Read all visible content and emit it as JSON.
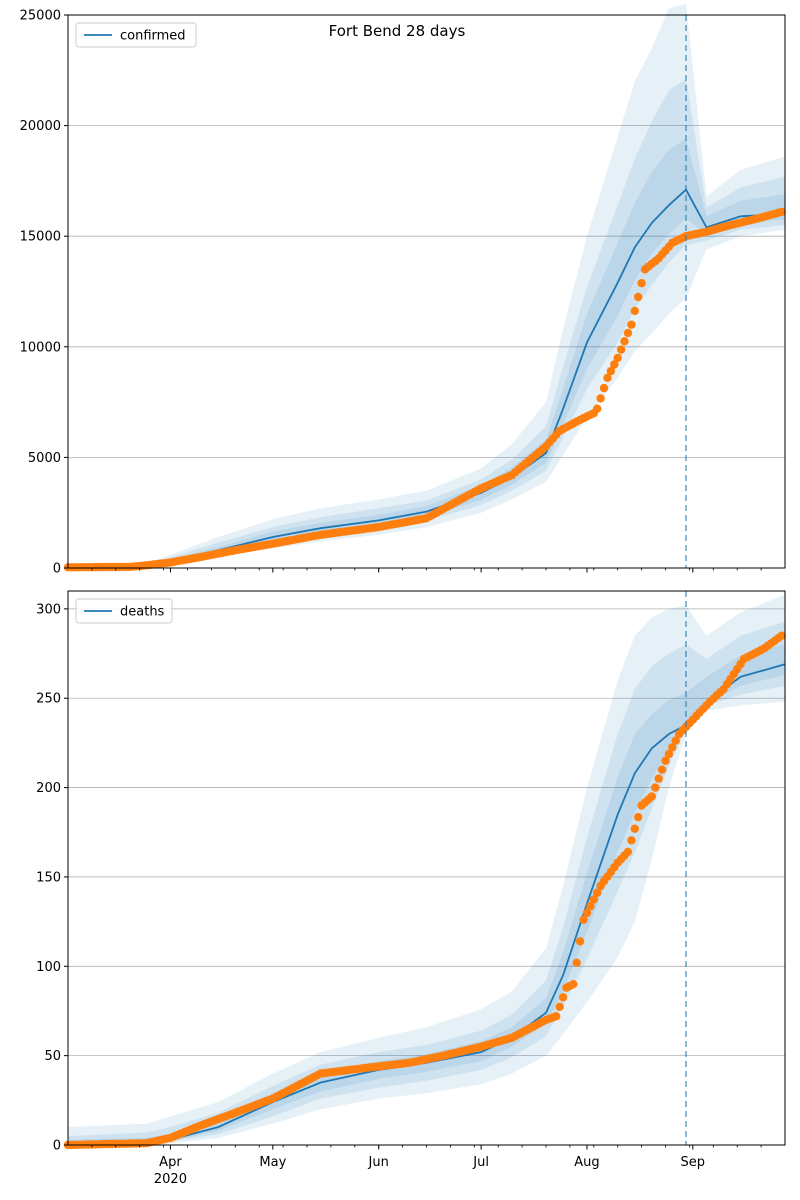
{
  "title": "Fort Bend 28 days",
  "colors": {
    "model": "#1f77b4",
    "observed": "#ff7f0e",
    "band": "#1f77b4",
    "grid": "#b0b0b0",
    "vline": "#1f77b4"
  },
  "x_axis": {
    "range": [
      "2020-03-02",
      "2020-09-28"
    ],
    "major_ticks": [
      {
        "date": "2020-04-01",
        "label": "Apr",
        "sublabel": "2020"
      },
      {
        "date": "2020-05-01",
        "label": "May",
        "sublabel": ""
      },
      {
        "date": "2020-06-01",
        "label": "Jun",
        "sublabel": ""
      },
      {
        "date": "2020-07-01",
        "label": "Jul",
        "sublabel": ""
      },
      {
        "date": "2020-08-01",
        "label": "Aug",
        "sublabel": ""
      },
      {
        "date": "2020-09-01",
        "label": "Sep",
        "sublabel": ""
      }
    ],
    "vline_date": "2020-08-30"
  },
  "chart_data": [
    {
      "type": "line",
      "legend": "confirmed",
      "legend_position": "top-left",
      "ylim": [
        0,
        25000
      ],
      "yticks": [
        "0",
        "5000",
        "10000",
        "15000",
        "20000",
        "25000"
      ],
      "ytick_values": [
        0,
        5000,
        10000,
        15000,
        20000,
        25000
      ],
      "grid": "horizontal",
      "model": {
        "x": [
          "2020-03-02",
          "2020-03-25",
          "2020-04-01",
          "2020-04-15",
          "2020-05-01",
          "2020-05-15",
          "2020-06-01",
          "2020-06-15",
          "2020-07-01",
          "2020-07-10",
          "2020-07-20",
          "2020-07-25",
          "2020-08-01",
          "2020-08-10",
          "2020-08-15",
          "2020-08-20",
          "2020-08-25",
          "2020-08-30",
          "2020-09-05",
          "2020-09-15",
          "2020-09-28"
        ],
        "median": [
          0,
          100,
          300,
          800,
          1400,
          1800,
          2150,
          2550,
          3400,
          4100,
          5200,
          7200,
          10200,
          12900,
          14500,
          15600,
          16400,
          17100,
          15400,
          15900,
          16000
        ],
        "bands": [
          {
            "lo": [
              0,
              40,
              180,
              500,
              900,
              1200,
              1500,
              1850,
              2500,
              3100,
              3900,
              5100,
              6800,
              8600,
              9800,
              10600,
              11500,
              12200,
              14400,
              15000,
              15300
            ],
            "hi": [
              30,
              200,
              600,
              1400,
              2200,
              2700,
              3100,
              3500,
              4500,
              5600,
              7500,
              10800,
              15000,
              19500,
              22000,
              23500,
              25300,
              25500,
              16800,
              18000,
              18600
            ]
          },
          {
            "lo": [
              0,
              60,
              230,
              620,
              1100,
              1450,
              1800,
              2150,
              2850,
              3500,
              4400,
              5900,
              8100,
              10200,
              11700,
              12800,
              13800,
              14600,
              14800,
              15300,
              15500
            ],
            "hi": [
              15,
              160,
              480,
              1150,
              1850,
              2300,
              2700,
              3050,
              4000,
              4900,
              6400,
              9100,
              12700,
              16400,
              18500,
              20200,
              21600,
              22100,
              16300,
              17200,
              17700
            ]
          },
          {
            "lo": [
              0,
              75,
              260,
              700,
              1220,
              1600,
              1960,
              2330,
              3080,
              3760,
              4760,
              6500,
              9000,
              11400,
              13000,
              14200,
              15100,
              15800,
              15100,
              15600,
              15750
            ],
            "hi": [
              8,
              130,
              380,
              950,
              1650,
              2050,
              2400,
              2800,
              3750,
              4550,
              5800,
              8100,
              11500,
              14700,
              16500,
              17900,
              18900,
              19400,
              15900,
              16600,
              16900
            ]
          }
        ]
      },
      "observed": {
        "x": [
          "2020-03-02",
          "2020-03-20",
          "2020-03-25",
          "2020-04-01",
          "2020-04-10",
          "2020-04-20",
          "2020-05-01",
          "2020-05-15",
          "2020-06-01",
          "2020-06-15",
          "2020-06-25",
          "2020-07-01",
          "2020-07-10",
          "2020-07-20",
          "2020-07-24",
          "2020-07-30",
          "2020-08-03",
          "2020-08-04",
          "2020-08-07",
          "2020-08-10",
          "2020-08-14",
          "2020-08-18",
          "2020-08-22",
          "2020-08-26",
          "2020-08-30",
          "2020-09-05",
          "2020-09-12",
          "2020-09-20",
          "2020-09-27"
        ],
        "y": [
          30,
          50,
          120,
          250,
          500,
          800,
          1100,
          1500,
          1850,
          2250,
          3100,
          3600,
          4200,
          5500,
          6200,
          6700,
          7000,
          7200,
          8600,
          9500,
          11000,
          13500,
          14000,
          14700,
          15000,
          15200,
          15500,
          15800,
          16100
        ]
      }
    },
    {
      "type": "line",
      "legend": "deaths",
      "legend_position": "top-left",
      "ylim": [
        0,
        310
      ],
      "yticks": [
        "0",
        "50",
        "100",
        "150",
        "200",
        "250",
        "300"
      ],
      "ytick_values": [
        0,
        50,
        100,
        150,
        200,
        250,
        300
      ],
      "grid": "horizontal",
      "model": {
        "x": [
          "2020-03-02",
          "2020-03-25",
          "2020-04-01",
          "2020-04-15",
          "2020-05-01",
          "2020-05-15",
          "2020-06-01",
          "2020-06-15",
          "2020-07-01",
          "2020-07-10",
          "2020-07-20",
          "2020-07-25",
          "2020-08-01",
          "2020-08-10",
          "2020-08-15",
          "2020-08-20",
          "2020-08-25",
          "2020-08-30",
          "2020-09-05",
          "2020-09-15",
          "2020-09-28"
        ],
        "median": [
          0,
          1,
          3,
          10,
          24,
          35,
          42,
          46,
          52,
          60,
          74,
          95,
          135,
          185,
          208,
          222,
          230,
          235,
          248,
          262,
          269
        ],
        "bands": [
          {
            "lo": [
              0,
              0,
              1,
              4,
              12,
              20,
              26,
              29,
              34,
              40,
              50,
              62,
              80,
              105,
              125,
              160,
              200,
              230,
              243,
              246,
              248
            ],
            "hi": [
              10,
              12,
              16,
              24,
              40,
              52,
              60,
              66,
              76,
              86,
              110,
              145,
              200,
              260,
              285,
              295,
              300,
              302,
              285,
              298,
              308
            ]
          },
          {
            "lo": [
              0,
              0,
              2,
              6,
              16,
              26,
              32,
              36,
              42,
              49,
              61,
              78,
              104,
              142,
              164,
              188,
              212,
              233,
              246,
              252,
              257
            ],
            "hi": [
              5,
              7,
              10,
              18,
              33,
              45,
              52,
              56,
              64,
              73,
              92,
              122,
              172,
              230,
              255,
              268,
              275,
              280,
              272,
              285,
              293
            ]
          },
          {
            "lo": [
              0,
              1,
              2,
              8,
              20,
              30,
              37,
              41,
              47,
              55,
              68,
              86,
              119,
              164,
              186,
              205,
              221,
              234,
              247,
              257,
              263
            ],
            "hi": [
              3,
              4,
              6,
              14,
              28,
              40,
              47,
              51,
              58,
              66,
              82,
              108,
              152,
              206,
              230,
              241,
              249,
              253,
              262,
              274,
              280
            ]
          }
        ]
      },
      "observed": {
        "x": [
          "2020-03-02",
          "2020-03-25",
          "2020-04-01",
          "2020-04-10",
          "2020-04-20",
          "2020-05-01",
          "2020-05-10",
          "2020-05-15",
          "2020-06-01",
          "2020-06-10",
          "2020-06-20",
          "2020-07-01",
          "2020-07-10",
          "2020-07-20",
          "2020-07-23",
          "2020-07-26",
          "2020-07-28",
          "2020-07-31",
          "2020-08-05",
          "2020-08-10",
          "2020-08-13",
          "2020-08-17",
          "2020-08-20",
          "2020-08-24",
          "2020-08-28",
          "2020-09-02",
          "2020-09-06",
          "2020-09-10",
          "2020-09-16",
          "2020-09-22",
          "2020-09-27"
        ],
        "y": [
          0,
          1,
          4,
          11,
          18,
          26,
          35,
          40,
          44,
          46,
          50,
          55,
          60,
          70,
          72,
          88,
          90,
          126,
          145,
          158,
          164,
          190,
          195,
          215,
          230,
          240,
          248,
          255,
          272,
          278,
          285
        ]
      }
    }
  ]
}
